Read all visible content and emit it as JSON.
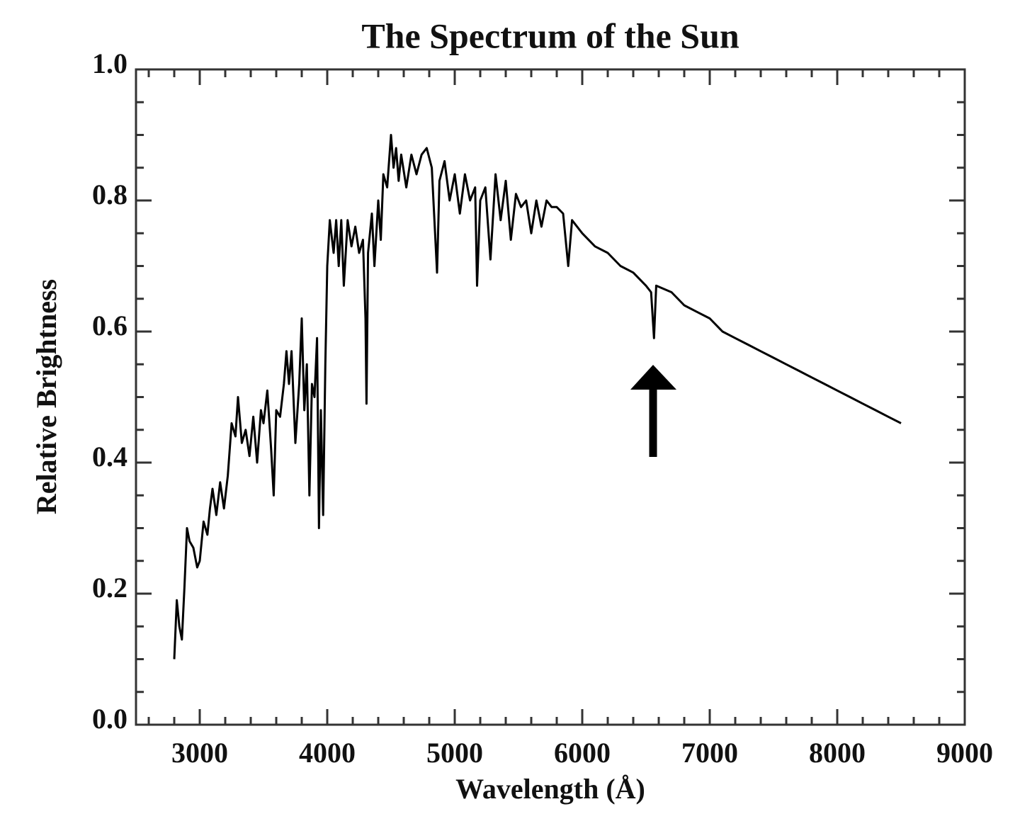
{
  "chart_data": {
    "type": "line",
    "title": "The Spectrum of the Sun",
    "xlabel": "Wavelength (Å)",
    "ylabel": "Relative Brightness",
    "color": "#000000",
    "xlim": [
      2500,
      9000
    ],
    "xticks": [
      3000,
      4000,
      5000,
      6000,
      7000,
      8000,
      9000
    ],
    "ylim": [
      0,
      1
    ],
    "yticks": [
      {
        "value": 0,
        "label": "0.0"
      },
      0.2,
      0.4,
      0.6,
      0.8,
      {
        "value": 1,
        "label": "1.0"
      }
    ],
    "x": [
      2800,
      2820,
      2840,
      2860,
      2880,
      2900,
      2920,
      2950,
      2980,
      3000,
      3030,
      3060,
      3080,
      3100,
      3130,
      3160,
      3190,
      3220,
      3250,
      3280,
      3300,
      3330,
      3360,
      3390,
      3420,
      3450,
      3480,
      3500,
      3530,
      3560,
      3580,
      3600,
      3630,
      3660,
      3680,
      3700,
      3720,
      3750,
      3780,
      3800,
      3820,
      3840,
      3860,
      3880,
      3900,
      3920,
      3935,
      3950,
      3968,
      3985,
      4000,
      4020,
      4050,
      4070,
      4090,
      4110,
      4130,
      4160,
      4190,
      4220,
      4250,
      4280,
      4300,
      4308,
      4320,
      4350,
      4370,
      4400,
      4420,
      4440,
      4470,
      4500,
      4520,
      4540,
      4560,
      4580,
      4620,
      4660,
      4700,
      4740,
      4780,
      4820,
      4861,
      4880,
      4920,
      4960,
      5000,
      5040,
      5080,
      5120,
      5160,
      5175,
      5200,
      5240,
      5280,
      5320,
      5360,
      5400,
      5440,
      5480,
      5520,
      5560,
      5600,
      5640,
      5680,
      5720,
      5760,
      5800,
      5850,
      5890,
      5920,
      6000,
      6100,
      6200,
      6300,
      6400,
      6500,
      6540,
      6563,
      6580,
      6700,
      6800,
      6900,
      7000,
      7100,
      7200,
      7300,
      7400,
      7500,
      7600,
      7700,
      7800,
      7900,
      8000,
      8100,
      8200,
      8300,
      8400,
      8500
    ],
    "values": [
      0.1,
      0.19,
      0.15,
      0.13,
      0.21,
      0.3,
      0.28,
      0.27,
      0.24,
      0.25,
      0.31,
      0.29,
      0.33,
      0.36,
      0.32,
      0.37,
      0.33,
      0.38,
      0.46,
      0.44,
      0.5,
      0.43,
      0.45,
      0.41,
      0.47,
      0.4,
      0.48,
      0.46,
      0.51,
      0.42,
      0.35,
      0.48,
      0.47,
      0.52,
      0.57,
      0.52,
      0.57,
      0.43,
      0.52,
      0.62,
      0.48,
      0.55,
      0.35,
      0.52,
      0.5,
      0.59,
      0.3,
      0.48,
      0.32,
      0.55,
      0.7,
      0.77,
      0.72,
      0.77,
      0.7,
      0.77,
      0.67,
      0.77,
      0.73,
      0.76,
      0.72,
      0.74,
      0.62,
      0.49,
      0.72,
      0.78,
      0.7,
      0.8,
      0.74,
      0.84,
      0.82,
      0.9,
      0.85,
      0.88,
      0.83,
      0.87,
      0.82,
      0.87,
      0.84,
      0.87,
      0.88,
      0.85,
      0.69,
      0.83,
      0.86,
      0.8,
      0.84,
      0.78,
      0.84,
      0.8,
      0.82,
      0.67,
      0.8,
      0.82,
      0.71,
      0.84,
      0.77,
      0.83,
      0.74,
      0.81,
      0.79,
      0.8,
      0.75,
      0.8,
      0.76,
      0.8,
      0.79,
      0.79,
      0.78,
      0.7,
      0.77,
      0.75,
      0.73,
      0.72,
      0.7,
      0.69,
      0.67,
      0.66,
      0.59,
      0.67,
      0.66,
      0.64,
      0.63,
      0.62,
      0.6,
      0.59,
      0.58,
      0.57,
      0.56,
      0.55,
      0.54,
      0.53,
      0.52,
      0.51,
      0.5,
      0.49,
      0.48,
      0.47,
      0.46
    ]
  }
}
